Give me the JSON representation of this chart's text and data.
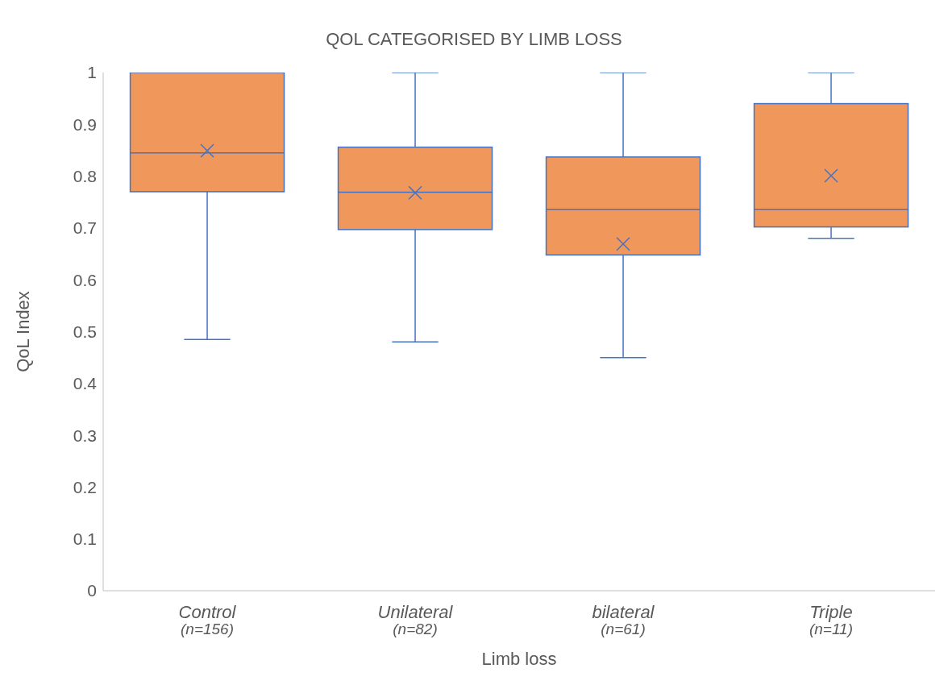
{
  "chart_data": {
    "type": "box",
    "title": "QOL CATEGORISED BY LIMB LOSS",
    "xlabel": "Limb loss",
    "ylabel": "QoL Index",
    "categories": [
      "Control\n(n=156)",
      "Unilateral\n(n=82)",
      "bilateral\n(n=61)",
      "Triple\n(n=11)"
    ],
    "color": "#f0985b",
    "boxes": [
      {
        "low": 0.485,
        "q1": 0.77,
        "median": 0.845,
        "q3": 1,
        "high": 1,
        "mean": 0.849
      },
      {
        "low": 0.48,
        "q1": 0.697,
        "median": 0.769,
        "q3": 0.856,
        "high": 1,
        "mean": 0.768
      },
      {
        "low": 0.45,
        "q1": 0.648,
        "median": 0.736,
        "q3": 0.837,
        "high": 1,
        "mean": 0.669
      },
      {
        "low": 0.68,
        "q1": 0.702,
        "median": 0.736,
        "q3": 0.94,
        "high": 1,
        "mean": 0.801
      }
    ],
    "ylim": [
      0,
      1
    ],
    "yticks": [
      0,
      0.1,
      0.2,
      0.3,
      0.4,
      0.5,
      0.6,
      0.7,
      0.8,
      0.9,
      1
    ],
    "marker": "cross"
  }
}
